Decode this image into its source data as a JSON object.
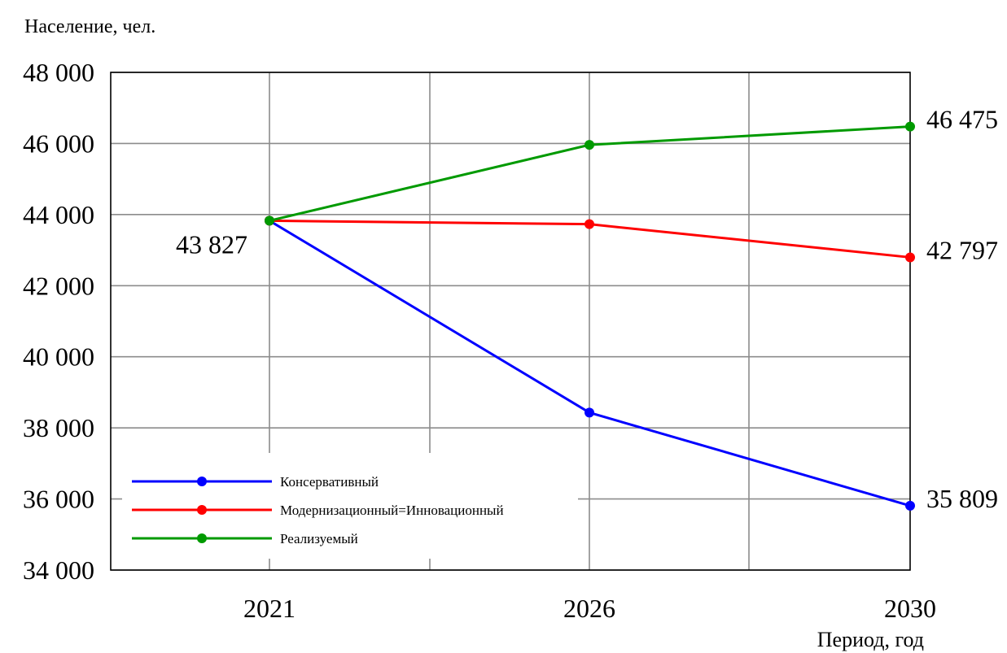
{
  "chart_data": {
    "type": "line",
    "title": "",
    "ylabel": "Население, чел.",
    "xlabel": "Период, год",
    "categories": [
      "2021",
      "2026",
      "2030"
    ],
    "ylim": [
      34000,
      48000
    ],
    "yticks": [
      34000,
      36000,
      38000,
      40000,
      42000,
      44000,
      46000,
      48000
    ],
    "ytick_labels": [
      "34 000",
      "36 000",
      "38 000",
      "40 000",
      "42 000",
      "44 000",
      "46 000",
      "48 000"
    ],
    "grid": true,
    "legend_position": "bottom-left",
    "series": [
      {
        "name": "Консервативный",
        "color": "#0000ff",
        "values": [
          43827,
          38430,
          35809
        ]
      },
      {
        "name": "Модернизационный=Инновационный",
        "color": "#ff0000",
        "values": [
          43827,
          43730,
          42797
        ]
      },
      {
        "name": "Реализуемый",
        "color": "#009a00",
        "values": [
          43827,
          45960,
          46475
        ]
      }
    ],
    "annotations": [
      {
        "text": "43 827",
        "series": 0,
        "point": 0
      },
      {
        "text": "46 475",
        "series": 2,
        "point": 2
      },
      {
        "text": "42 797",
        "series": 1,
        "point": 2
      },
      {
        "text": "35 809",
        "series": 0,
        "point": 2
      }
    ]
  }
}
